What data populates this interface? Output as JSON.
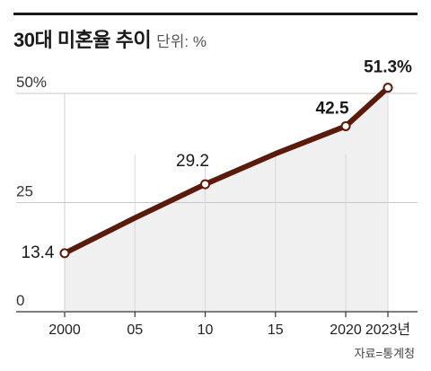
{
  "title": "30대 미혼율 추이",
  "unit_label": "단위: %",
  "source": "자료=통계청",
  "chart_data": {
    "type": "line",
    "title": "30대 미혼율 추이",
    "unit": "단위: %",
    "xlim": [
      2000,
      2023
    ],
    "ylim": [
      0,
      50
    ],
    "x_ticks": [
      {
        "x": 2000,
        "label": "2000"
      },
      {
        "x": 2005,
        "label": "05"
      },
      {
        "x": 2010,
        "label": "10"
      },
      {
        "x": 2015,
        "label": "15"
      },
      {
        "x": 2020,
        "label": "2020"
      },
      {
        "x": 2023,
        "label": "2023년"
      }
    ],
    "y_ticks": [
      {
        "y": 0,
        "label": "0"
      },
      {
        "y": 25,
        "label": "25"
      },
      {
        "y": 50,
        "label": "50%"
      }
    ],
    "series": [
      {
        "x": [
          2000,
          2010,
          2020,
          2023
        ],
        "y": [
          13.4,
          29.2,
          42.5,
          51.3
        ],
        "data_labels": [
          "13.4",
          "29.2",
          "42.5",
          "51.3%"
        ]
      }
    ],
    "line_path": {
      "x": [
        2000,
        2005,
        2010,
        2015,
        2020,
        2023
      ],
      "y": [
        13.4,
        21.5,
        29.2,
        36.2,
        42.5,
        51.3
      ]
    },
    "colors": {
      "line": "#5a1a0c",
      "fill": "#f0f0f0",
      "grid": "#c8c8c8",
      "axis": "#333333"
    },
    "grid": true,
    "legend": "none"
  }
}
